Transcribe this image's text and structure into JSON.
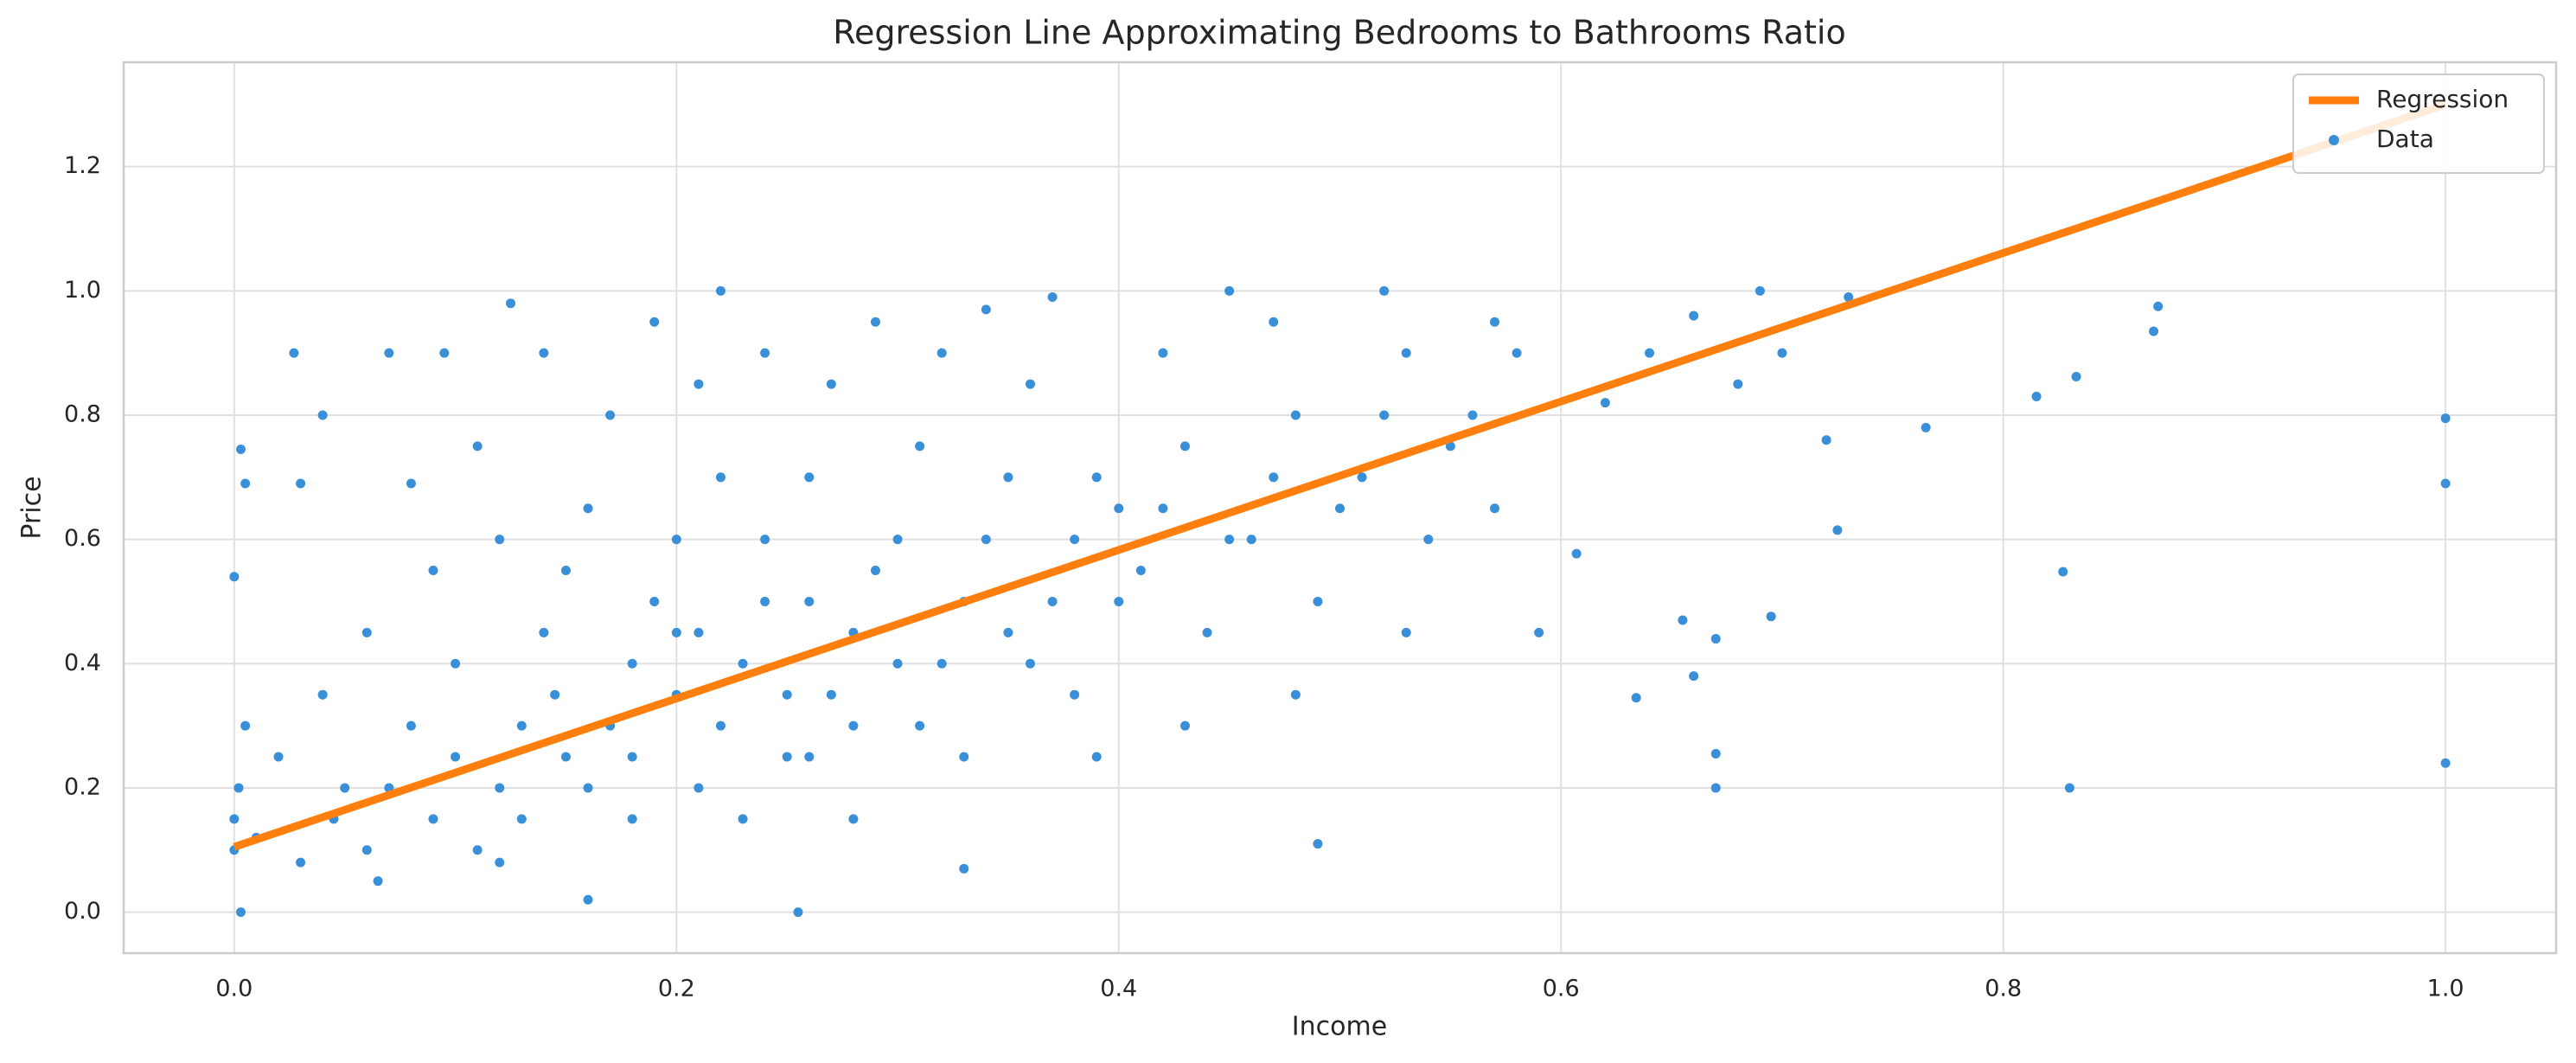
{
  "chart_data": {
    "type": "scatter",
    "title": "Regression Line Approximating Bedrooms to Bathrooms Ratio",
    "xlabel": "Income",
    "ylabel": "Price",
    "xlim": [
      -0.05,
      1.05
    ],
    "ylim": [
      -0.066,
      1.368
    ],
    "xticks": [
      {
        "value": 0,
        "label": "0.0"
      },
      0.2,
      0.4,
      0.6,
      0.8,
      {
        "value": 1,
        "label": "1.0"
      }
    ],
    "yticks": [
      {
        "value": 0,
        "label": "0.0"
      },
      0.2,
      0.4,
      0.6,
      0.8,
      {
        "value": 1,
        "label": "1.0"
      },
      1.2
    ],
    "grid": true,
    "legend": "upper right",
    "series": [
      {
        "name": "Regression",
        "type": "line",
        "color": "#ff7f0e",
        "x": [
          0,
          1
        ],
        "values": [
          0.105,
          1.3
        ]
      },
      {
        "name": "Data",
        "type": "scatter",
        "color": "#3a8fd9",
        "x": [
          0,
          0,
          0.002,
          0.005,
          0.01,
          0.02,
          0.03,
          0.04,
          0.03,
          0.005,
          0.045,
          0.05,
          0.04,
          0,
          0.06,
          0.07,
          0.08,
          0.06,
          0.09,
          0.07,
          0.09,
          0.1,
          0.08,
          0.1,
          0.095,
          0.065,
          0.11,
          0.12,
          0.13,
          0.14,
          0.12,
          0.13,
          0.15,
          0.11,
          0.14,
          0.15,
          0.125,
          0.12,
          0.145,
          0.16,
          0.17,
          0.18,
          0.19,
          0.16,
          0.18,
          0.2,
          0.17,
          0.19,
          0.2,
          0.16,
          0.18,
          0.2,
          0.21,
          0.22,
          0.23,
          0.24,
          0.22,
          0.21,
          0.25,
          0.23,
          0.24,
          0.22,
          0.25,
          0.21,
          0.24,
          0.26,
          0.27,
          0.28,
          0.29,
          0.26,
          0.28,
          0.3,
          0.27,
          0.29,
          0.3,
          0.28,
          0.26,
          0.31,
          0.32,
          0.33,
          0.34,
          0.31,
          0.33,
          0.35,
          0.32,
          0.34,
          0.35,
          0.33,
          0.36,
          0.37,
          0.38,
          0.39,
          0.36,
          0.38,
          0.4,
          0.37,
          0.39,
          0.4,
          0.41,
          0.42,
          0.43,
          0.44,
          0.42,
          0.45,
          0.43,
          0.45,
          0.46,
          0.47,
          0.48,
          0.49,
          0.47,
          0.5,
          0.48,
          0.51,
          0.52,
          0.53,
          0.54,
          0.52,
          0.55,
          0.53,
          0.56,
          0.57,
          0.58,
          0.59,
          0.57,
          0.62,
          0.64,
          0.66,
          0.68,
          0.69,
          0.7,
          0.72,
          0.73,
          0.655,
          0.66,
          0.67,
          1,
          1,
          1,
          0.87,
          0.868,
          0.833,
          0.815,
          0.765,
          0.827,
          0.83,
          0.725,
          0.695,
          0.67,
          0.67,
          0.634,
          0.607,
          0.49,
          0.255,
          0.003,
          0.027,
          0.003
        ],
        "values": [
          0.1,
          0.15,
          0.2,
          0.3,
          0.12,
          0.25,
          0.08,
          0.35,
          0.69,
          0.69,
          0.15,
          0.2,
          0.8,
          0.54,
          0.1,
          0.2,
          0.3,
          0.45,
          0.15,
          0.9,
          0.55,
          0.25,
          0.69,
          0.4,
          0.9,
          0.05,
          0.1,
          0.2,
          0.3,
          0.45,
          0.6,
          0.15,
          0.25,
          0.75,
          0.9,
          0.55,
          0.98,
          0.08,
          0.35,
          0.2,
          0.3,
          0.4,
          0.5,
          0.65,
          0.15,
          0.35,
          0.8,
          0.95,
          0.6,
          0.02,
          0.25,
          0.45,
          0.2,
          0.3,
          0.4,
          0.5,
          0.7,
          0.85,
          0.35,
          0.15,
          0.6,
          1.0,
          0.25,
          0.45,
          0.9,
          0.25,
          0.35,
          0.45,
          0.55,
          0.7,
          0.3,
          0.4,
          0.85,
          0.95,
          0.6,
          0.15,
          0.5,
          0.3,
          0.4,
          0.5,
          0.6,
          0.75,
          0.25,
          0.45,
          0.9,
          0.97,
          0.7,
          0.07,
          0.4,
          0.5,
          0.6,
          0.7,
          0.85,
          0.35,
          0.5,
          0.99,
          0.25,
          0.65,
          0.55,
          0.65,
          0.75,
          0.45,
          0.9,
          0.6,
          0.3,
          1.0,
          0.6,
          0.7,
          0.8,
          0.5,
          0.95,
          0.65,
          0.35,
          0.7,
          0.8,
          0.9,
          0.6,
          1.0,
          0.75,
          0.45,
          0.8,
          0.65,
          0.9,
          0.45,
          0.95,
          0.82,
          0.9,
          0.96,
          0.85,
          1.0,
          0.9,
          0.76,
          0.99,
          0.47,
          0.38,
          0.44,
          0.795,
          0.69,
          0.24,
          0.975,
          0.935,
          0.862,
          0.83,
          0.78,
          0.548,
          0.2,
          0.615,
          0.476,
          0.255,
          0.2,
          0.345,
          0.577,
          0.11,
          0,
          0,
          0.9,
          0.745
        ]
      }
    ]
  }
}
